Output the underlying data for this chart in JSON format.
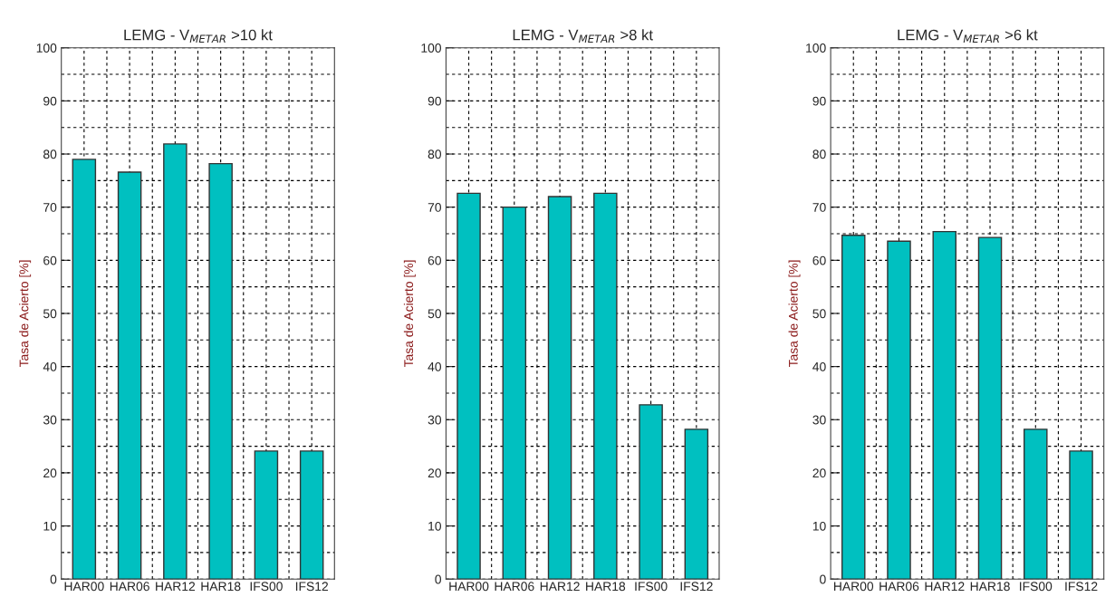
{
  "chart_data": [
    {
      "type": "bar",
      "title": "LEMG - V$_{METAR}$ >10 kt",
      "ylabel": "Tasa de Acierto [%]",
      "categories": [
        "HAR00",
        "HAR06",
        "HAR12",
        "HAR18",
        "IFS00",
        "IFS12"
      ],
      "values": [
        79.0,
        76.6,
        81.9,
        78.2,
        24.1,
        24.1
      ],
      "color": "#00c0c0",
      "ylim": [
        0,
        100
      ],
      "yticks": [
        0,
        10,
        20,
        30,
        40,
        50,
        60,
        70,
        80,
        90,
        100
      ],
      "grid": true,
      "line_style": "dashed"
    },
    {
      "type": "bar",
      "title": "LEMG - V$_{METAR}$ >8 kt",
      "ylabel": "Tasa de Acierto [%]",
      "categories": [
        "HAR00",
        "HAR06",
        "HAR12",
        "HAR18",
        "IFS00",
        "IFS12"
      ],
      "values": [
        72.6,
        70.0,
        72.0,
        72.6,
        32.8,
        28.2
      ],
      "color": "#00c0c0",
      "ylim": [
        0,
        100
      ],
      "yticks": [
        0,
        10,
        20,
        30,
        40,
        50,
        60,
        70,
        80,
        90,
        100
      ],
      "grid": true,
      "line_style": "dashed"
    },
    {
      "type": "bar",
      "title": "LEMG - V$_{METAR}$ >6 kt",
      "ylabel": "Tasa de Acierto [%]",
      "categories": [
        "HAR00",
        "HAR06",
        "HAR12",
        "HAR18",
        "IFS00",
        "IFS12"
      ],
      "values": [
        64.7,
        63.6,
        65.4,
        64.3,
        28.2,
        24.1
      ],
      "color": "#00c0c0",
      "ylim": [
        0,
        100
      ],
      "yticks": [
        0,
        10,
        20,
        30,
        40,
        50,
        60,
        70,
        80,
        90,
        100
      ],
      "grid": true,
      "line_style": "dashed"
    }
  ]
}
